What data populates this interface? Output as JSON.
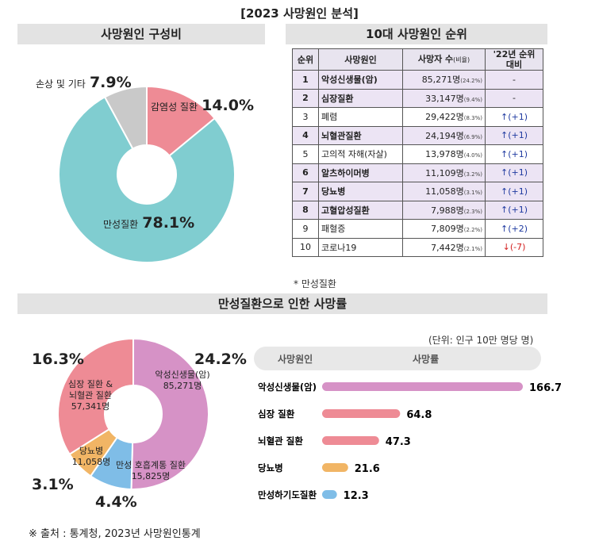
{
  "title": "[2023 사망원인 분석]",
  "sections": {
    "composition": "사망원인 구성비",
    "top10": "10대 사망원인 순위",
    "chronic": "만성질환으로 인한 사망률"
  },
  "colors": {
    "infectious": "#ee8b95",
    "chronic": "#80cdd0",
    "other": "#c9c9c9",
    "cancer": "#d692c6",
    "heart_cerebro": "#ee8b95",
    "diabetes": "#f1b565",
    "respiratory": "#7fbde7",
    "tablehl": "#ece4f4"
  },
  "chart_data": [
    {
      "type": "pie",
      "title": "사망원인 구성비",
      "categories": [
        "감염성 질환",
        "만성질환",
        "손상 및 기타"
      ],
      "values": [
        14.0,
        78.1,
        7.9
      ],
      "labels": [
        "14.0%",
        "78.1%",
        "7.9%"
      ]
    },
    {
      "type": "table",
      "title": "10대 사망원인 순위",
      "columns": [
        "순위",
        "사망원인",
        "사망자 수",
        "(비율)",
        "'22년 순위",
        "대비"
      ],
      "rows": [
        {
          "rank": "1",
          "name": "악성신생물(암)",
          "deaths": "85,271명",
          "pct": "(24.2%)",
          "change": "-",
          "dir": "none",
          "chronic": true
        },
        {
          "rank": "2",
          "name": "심장질환",
          "deaths": "33,147명",
          "pct": "(9.4%)",
          "change": "-",
          "dir": "none",
          "chronic": true
        },
        {
          "rank": "3",
          "name": "폐렴",
          "deaths": "29,422명",
          "pct": "(8.3%)",
          "change": "↑(+1)",
          "dir": "up",
          "chronic": false
        },
        {
          "rank": "4",
          "name": "뇌혈관질환",
          "deaths": "24,194명",
          "pct": "(6.9%)",
          "change": "↑(+1)",
          "dir": "up",
          "chronic": true
        },
        {
          "rank": "5",
          "name": "고의적 자해(자살)",
          "deaths": "13,978명",
          "pct": "(4.0%)",
          "change": "↑(+1)",
          "dir": "up",
          "chronic": false
        },
        {
          "rank": "6",
          "name": "알츠하이머병",
          "deaths": "11,109명",
          "pct": "(3.2%)",
          "change": "↑(+1)",
          "dir": "up",
          "chronic": true
        },
        {
          "rank": "7",
          "name": "당뇨병",
          "deaths": "11,058명",
          "pct": "(3.1%)",
          "change": "↑(+1)",
          "dir": "up",
          "chronic": true
        },
        {
          "rank": "8",
          "name": "고혈압성질환",
          "deaths": "7,988명",
          "pct": "(2.3%)",
          "change": "↑(+1)",
          "dir": "up",
          "chronic": true
        },
        {
          "rank": "9",
          "name": "패혈증",
          "deaths": "7,809명",
          "pct": "(2.2%)",
          "change": "↑(+2)",
          "dir": "up",
          "chronic": false
        },
        {
          "rank": "10",
          "name": "코로나19",
          "deaths": "7,442명",
          "pct": "(2.1%)",
          "change": "↓(-7)",
          "dir": "down",
          "chronic": false
        }
      ],
      "note": "* 만성질환"
    },
    {
      "type": "pie",
      "title": "",
      "categories": [
        "악성신생물(암)",
        "만성 호흡계통 질환",
        "당뇨병",
        "심장 질환 & 뇌혈관 질환"
      ],
      "counts": [
        "85,271명",
        "15,825명",
        "11,058명",
        "57,341명"
      ],
      "values": [
        24.2,
        4.4,
        3.1,
        16.3
      ],
      "labels": [
        "24.2%",
        "4.4%",
        "3.1%",
        "16.3%"
      ]
    },
    {
      "type": "bar",
      "orientation": "horizontal",
      "unit": "(단위: 인구 10만 명당 명)",
      "header": [
        "사망원인",
        "사망률"
      ],
      "categories": [
        "악성신생물(암)",
        "심장 질환",
        "뇌혈관 질환",
        "당뇨병",
        "만성하기도질환"
      ],
      "values": [
        166.7,
        64.8,
        47.3,
        21.6,
        12.3
      ],
      "labels": [
        "166.7",
        "64.8",
        "47.3",
        "21.6",
        "12.3"
      ],
      "xlim": [
        0,
        170
      ]
    }
  ],
  "source": "※ 출처 : 통계청, 2023년 사망원인통계"
}
